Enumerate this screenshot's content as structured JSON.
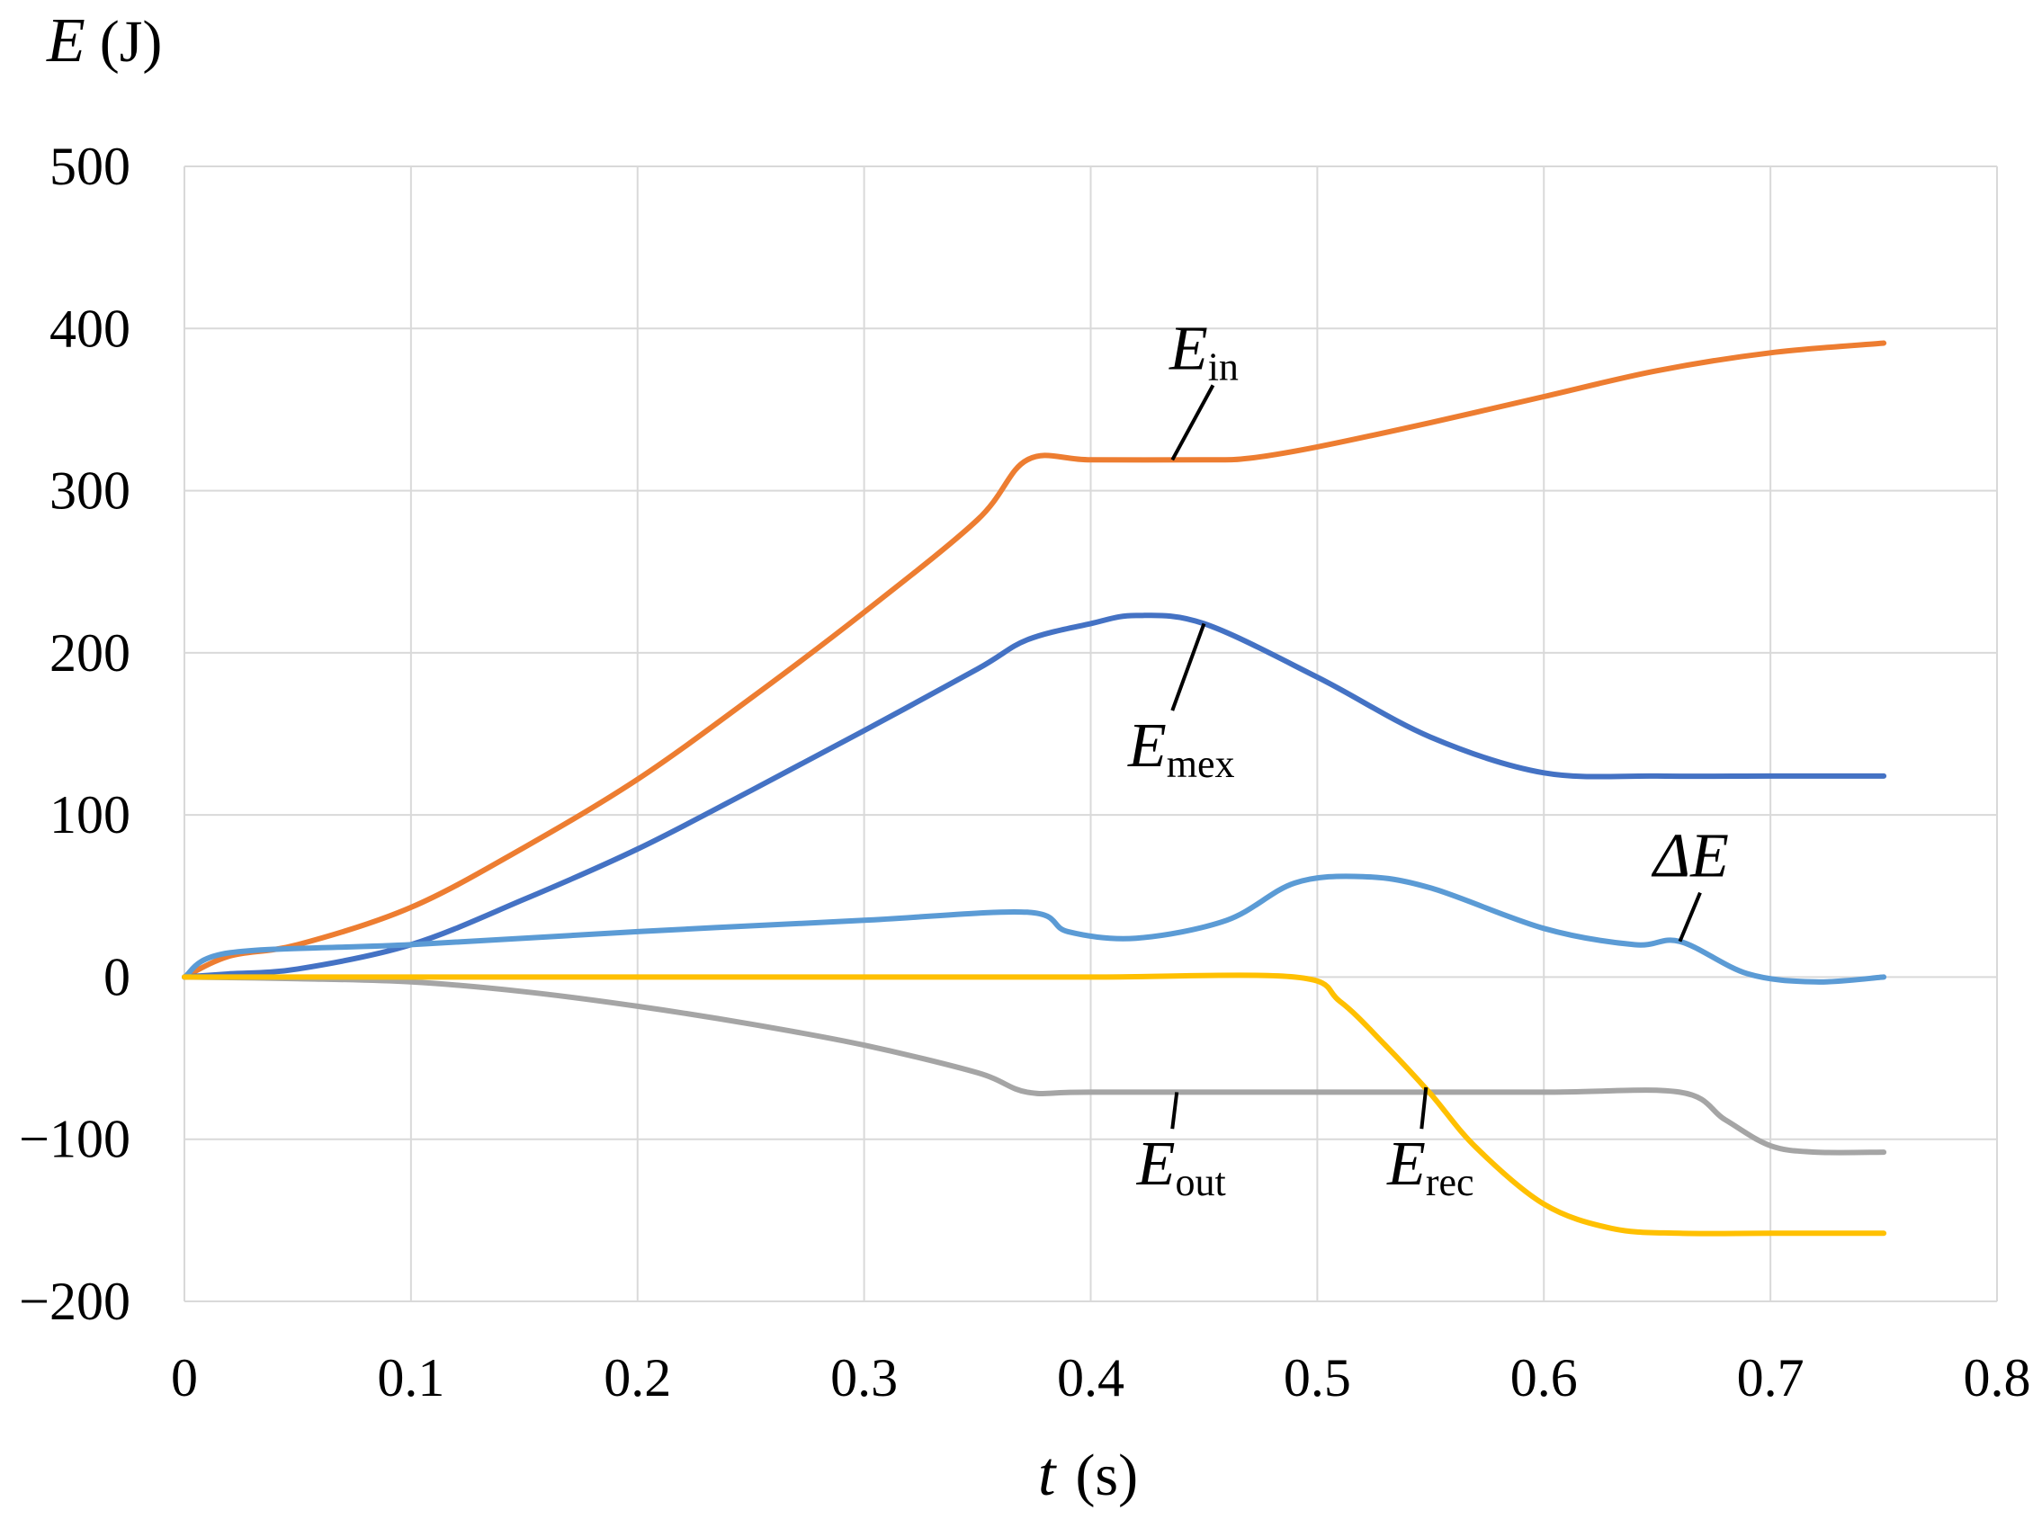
{
  "chart_data": {
    "type": "line",
    "ylabel": {
      "symbol": "E",
      "unit": "(J)"
    },
    "xlabel": {
      "symbol": "t",
      "unit": "(s)"
    },
    "xlim": [
      0,
      0.8
    ],
    "ylim": [
      -200,
      500
    ],
    "xticks": [
      0,
      0.1,
      0.2,
      0.3,
      0.4,
      0.5,
      0.6,
      0.7,
      0.8
    ],
    "xtick_labels": [
      "0",
      "0.1",
      "0.2",
      "0.3",
      "0.4",
      "0.5",
      "0.6",
      "0.7",
      "0.8"
    ],
    "yticks": [
      -200,
      -100,
      0,
      100,
      200,
      300,
      400,
      500
    ],
    "ytick_labels": [
      "−200",
      "−100",
      "0",
      "100",
      "200",
      "300",
      "400",
      "500"
    ],
    "grid": true,
    "series": [
      {
        "label": "E_in",
        "label_main": "E",
        "label_sub": "in",
        "color": "#ED7D31",
        "x": [
          0,
          0.02,
          0.05,
          0.1,
          0.15,
          0.2,
          0.25,
          0.3,
          0.35,
          0.372,
          0.4,
          0.45,
          0.47,
          0.5,
          0.55,
          0.6,
          0.65,
          0.7,
          0.75
        ],
        "y": [
          0,
          13,
          20,
          43,
          80,
          122,
          172,
          225,
          282,
          319,
          319,
          319,
          320,
          327,
          342,
          358,
          374,
          385,
          391
        ]
      },
      {
        "label": "E_mex",
        "label_main": "E",
        "label_sub": "mex",
        "color": "#4472C4",
        "x": [
          0,
          0.02,
          0.05,
          0.1,
          0.15,
          0.2,
          0.25,
          0.3,
          0.35,
          0.372,
          0.4,
          0.42,
          0.45,
          0.5,
          0.55,
          0.6,
          0.65,
          0.7,
          0.75
        ],
        "y": [
          0,
          2,
          5,
          20,
          48,
          79,
          115,
          152,
          190,
          208,
          218,
          223,
          218,
          185,
          148,
          126,
          124,
          124,
          124
        ]
      },
      {
        "label": "ΔE",
        "label_main": "ΔE",
        "label_sub": "",
        "color": "#5B9BD5",
        "x": [
          0,
          0.02,
          0.1,
          0.2,
          0.3,
          0.372,
          0.39,
          0.42,
          0.46,
          0.49,
          0.52,
          0.55,
          0.6,
          0.64,
          0.66,
          0.69,
          0.72,
          0.75
        ],
        "y": [
          0,
          15,
          20,
          28,
          35,
          40,
          28,
          24,
          35,
          58,
          62,
          55,
          30,
          20,
          22,
          2,
          -3,
          0
        ]
      },
      {
        "label": "E_out",
        "label_main": "E",
        "label_sub": "out",
        "color": "#A5A5A5",
        "x": [
          0,
          0.05,
          0.1,
          0.15,
          0.2,
          0.25,
          0.3,
          0.35,
          0.372,
          0.4,
          0.5,
          0.6,
          0.66,
          0.68,
          0.7,
          0.72,
          0.75
        ],
        "y": [
          0,
          -1,
          -3,
          -9,
          -18,
          -29,
          -42,
          -59,
          -71,
          -71,
          -71,
          -71,
          -71,
          -88,
          -104,
          -108,
          -108
        ]
      },
      {
        "label": "E_rec",
        "label_main": "E",
        "label_sub": "rec",
        "color": "#FFC000",
        "x": [
          0,
          0.1,
          0.2,
          0.3,
          0.4,
          0.49,
          0.51,
          0.53,
          0.55,
          0.57,
          0.6,
          0.63,
          0.66,
          0.7,
          0.75
        ],
        "y": [
          0,
          0,
          0,
          0,
          0,
          0,
          -15,
          -42,
          -72,
          -105,
          -140,
          -155,
          -158,
          -158,
          -158
        ]
      }
    ],
    "annotations": [
      {
        "series": "E_in",
        "point": [
          0.44,
          319
        ],
        "text_at": [
          0.45,
          375
        ]
      },
      {
        "series": "E_mex",
        "point": [
          0.45,
          218
        ],
        "text_at": [
          0.44,
          130
        ]
      },
      {
        "series": "ΔE",
        "point": [
          0.664,
          22
        ],
        "text_at": [
          0.665,
          62
        ]
      },
      {
        "series": "E_out",
        "point": [
          0.438,
          -71
        ],
        "text_at": [
          0.44,
          -128
        ]
      },
      {
        "series": "E_rec",
        "point": [
          0.548,
          -68
        ],
        "text_at": [
          0.55,
          -128
        ]
      }
    ]
  }
}
